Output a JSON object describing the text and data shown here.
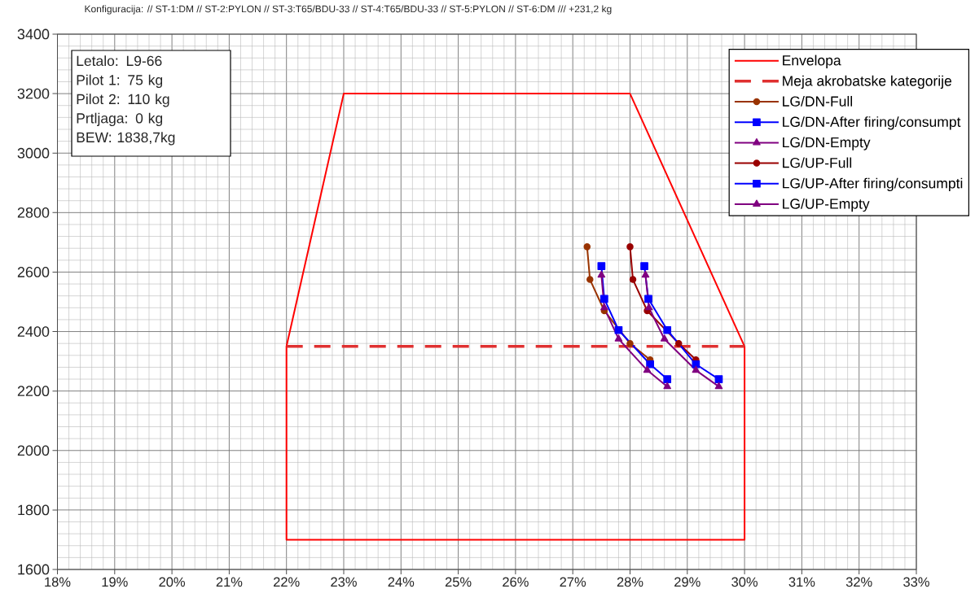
{
  "chart_data": {
    "type": "line",
    "title": "Konfiguracija: // ST-1:DM // ST-2:PYLON // ST-3:T65/BDU-33 // ST-4:T65/BDU-33 // ST-5:PYLON // ST-6:DM /// +231,2 kg",
    "annotations": [
      "Letalo: L9-66",
      "Pilot 1: 75 kg",
      "Pilot 2: 110 kg",
      "Prtljaga: 0 kg",
      "BEW: 1838,7kg"
    ],
    "xlim": [
      18,
      33
    ],
    "xticks": [
      {
        "value": 18,
        "label": "18%"
      },
      {
        "value": 19,
        "label": "19%"
      },
      {
        "value": 20,
        "label": "20%"
      },
      {
        "value": 21,
        "label": "21%"
      },
      {
        "value": 22,
        "label": "22%"
      },
      {
        "value": 23,
        "label": "23%"
      },
      {
        "value": 24,
        "label": "24%"
      },
      {
        "value": 25,
        "label": "25%"
      },
      {
        "value": 26,
        "label": "26%"
      },
      {
        "value": 27,
        "label": "27%"
      },
      {
        "value": 28,
        "label": "28%"
      },
      {
        "value": 29,
        "label": "29%"
      },
      {
        "value": 30,
        "label": "30%"
      },
      {
        "value": 31,
        "label": "31%"
      },
      {
        "value": 32,
        "label": "32%"
      },
      {
        "value": 33,
        "label": "33%"
      }
    ],
    "ylim": [
      1600,
      3400
    ],
    "yticks": [
      1600,
      1800,
      2000,
      2200,
      2400,
      2600,
      2800,
      3000,
      3200,
      3400
    ],
    "grid": true,
    "legend": "top right",
    "line_style": "solid",
    "series": [
      {
        "name": "Envelopa",
        "color": "#ff0000",
        "marker": "none",
        "x": [
          22,
          22,
          23,
          28,
          30,
          30,
          22,
          22
        ],
        "values": [
          1700,
          2350,
          3200,
          3200,
          2350,
          1700,
          1700,
          2350
        ]
      },
      {
        "name": "Meja akrobatske kategorije",
        "color": "#e03030",
        "marker": "none",
        "line_style": "dashed",
        "x": [
          22,
          30
        ],
        "values": [
          2350,
          2350
        ]
      },
      {
        "name": "LG/DN-Full",
        "color": "#993300",
        "marker": "circle",
        "x": [
          27.25,
          27.3,
          27.55,
          28.0,
          28.35
        ],
        "values": [
          2685,
          2575,
          2470,
          2360,
          2305
        ]
      },
      {
        "name": "LG/DN-After firing/consumpt",
        "color": "#0000ff",
        "marker": "square",
        "x": [
          27.5,
          27.55,
          27.8,
          28.35,
          28.65
        ],
        "values": [
          2620,
          2510,
          2405,
          2290,
          2240
        ]
      },
      {
        "name": "LG/DN-Empty",
        "color": "#800080",
        "marker": "triangle",
        "x": [
          27.5,
          27.55,
          27.8,
          28.3,
          28.65
        ],
        "values": [
          2590,
          2480,
          2375,
          2270,
          2215
        ]
      },
      {
        "name": "LG/UP-Full",
        "color": "#990000",
        "marker": "circle",
        "x": [
          28.0,
          28.05,
          28.3,
          28.85,
          29.15
        ],
        "values": [
          2685,
          2575,
          2470,
          2360,
          2305
        ]
      },
      {
        "name": "LG/UP-After firing/consumpti",
        "color": "#0000ff",
        "marker": "square",
        "x": [
          28.25,
          28.32,
          28.65,
          29.15,
          29.55
        ],
        "values": [
          2620,
          2510,
          2405,
          2290,
          2240
        ]
      },
      {
        "name": "LG/UP-Empty",
        "color": "#800080",
        "marker": "triangle",
        "x": [
          28.27,
          28.33,
          28.6,
          29.15,
          29.55
        ],
        "values": [
          2590,
          2480,
          2375,
          2270,
          2215
        ]
      }
    ]
  }
}
